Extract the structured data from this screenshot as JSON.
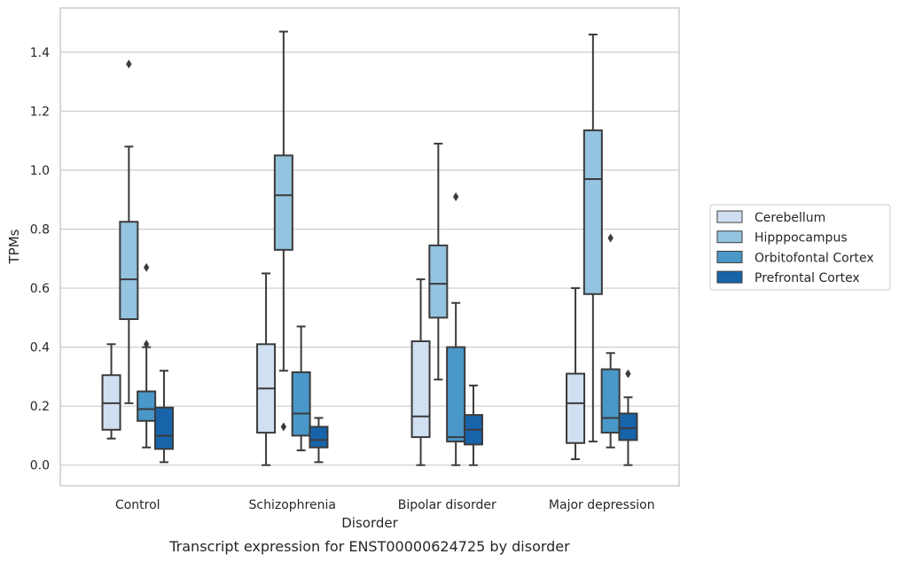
{
  "chart_data": {
    "type": "box",
    "caption": "Transcript expression for ENST00000624725 by disorder",
    "xlabel": "Disorder",
    "ylabel": "TPMs",
    "ylim": [
      -0.07,
      1.55
    ],
    "yticks": [
      "0.0",
      "0.2",
      "0.4",
      "0.6",
      "0.8",
      "1.0",
      "1.2",
      "1.4"
    ],
    "categories": [
      "Control",
      "Schizophrenia",
      "Bipolar disorder",
      "Major depression"
    ],
    "grid": "horizontal",
    "legend_position": "right",
    "series": [
      {
        "name": "Cerebellum",
        "color": "#d0e0f2",
        "boxes": [
          {
            "min": 0.09,
            "q1": 0.12,
            "median": 0.21,
            "q3": 0.305,
            "max": 0.41,
            "outliers": []
          },
          {
            "min": 0.0,
            "q1": 0.11,
            "median": 0.26,
            "q3": 0.41,
            "max": 0.65,
            "outliers": []
          },
          {
            "min": 0.0,
            "q1": 0.095,
            "median": 0.165,
            "q3": 0.42,
            "max": 0.63,
            "outliers": []
          },
          {
            "min": 0.02,
            "q1": 0.075,
            "median": 0.21,
            "q3": 0.31,
            "max": 0.6,
            "outliers": []
          }
        ]
      },
      {
        "name": "Hipppocampus",
        "color": "#94c4df",
        "boxes": [
          {
            "min": 0.21,
            "q1": 0.495,
            "median": 0.63,
            "q3": 0.825,
            "max": 1.08,
            "outliers": [
              1.36
            ]
          },
          {
            "min": 0.32,
            "q1": 0.73,
            "median": 0.915,
            "q3": 1.05,
            "max": 1.47,
            "outliers": [
              0.13
            ]
          },
          {
            "min": 0.29,
            "q1": 0.5,
            "median": 0.615,
            "q3": 0.745,
            "max": 1.09,
            "outliers": []
          },
          {
            "min": 0.08,
            "q1": 0.58,
            "median": 0.97,
            "q3": 1.135,
            "max": 1.46,
            "outliers": []
          }
        ]
      },
      {
        "name": "Orbitofontal Cortex",
        "color": "#4a97c9",
        "boxes": [
          {
            "min": 0.06,
            "q1": 0.15,
            "median": 0.19,
            "q3": 0.25,
            "max": 0.4,
            "outliers": [
              0.67,
              0.41
            ]
          },
          {
            "min": 0.05,
            "q1": 0.1,
            "median": 0.175,
            "q3": 0.315,
            "max": 0.47,
            "outliers": []
          },
          {
            "min": 0.0,
            "q1": 0.08,
            "median": 0.095,
            "q3": 0.4,
            "max": 0.55,
            "outliers": [
              0.91
            ]
          },
          {
            "min": 0.06,
            "q1": 0.11,
            "median": 0.16,
            "q3": 0.325,
            "max": 0.38,
            "outliers": [
              0.77
            ]
          }
        ]
      },
      {
        "name": "Prefrontal Cortex",
        "color": "#1764ab",
        "boxes": [
          {
            "min": 0.01,
            "q1": 0.055,
            "median": 0.1,
            "q3": 0.195,
            "max": 0.32,
            "outliers": []
          },
          {
            "min": 0.01,
            "q1": 0.06,
            "median": 0.085,
            "q3": 0.13,
            "max": 0.16,
            "outliers": []
          },
          {
            "min": 0.0,
            "q1": 0.07,
            "median": 0.12,
            "q3": 0.17,
            "max": 0.27,
            "outliers": []
          },
          {
            "min": 0.0,
            "q1": 0.085,
            "median": 0.125,
            "q3": 0.175,
            "max": 0.23,
            "outliers": [
              0.31
            ]
          }
        ]
      }
    ]
  }
}
